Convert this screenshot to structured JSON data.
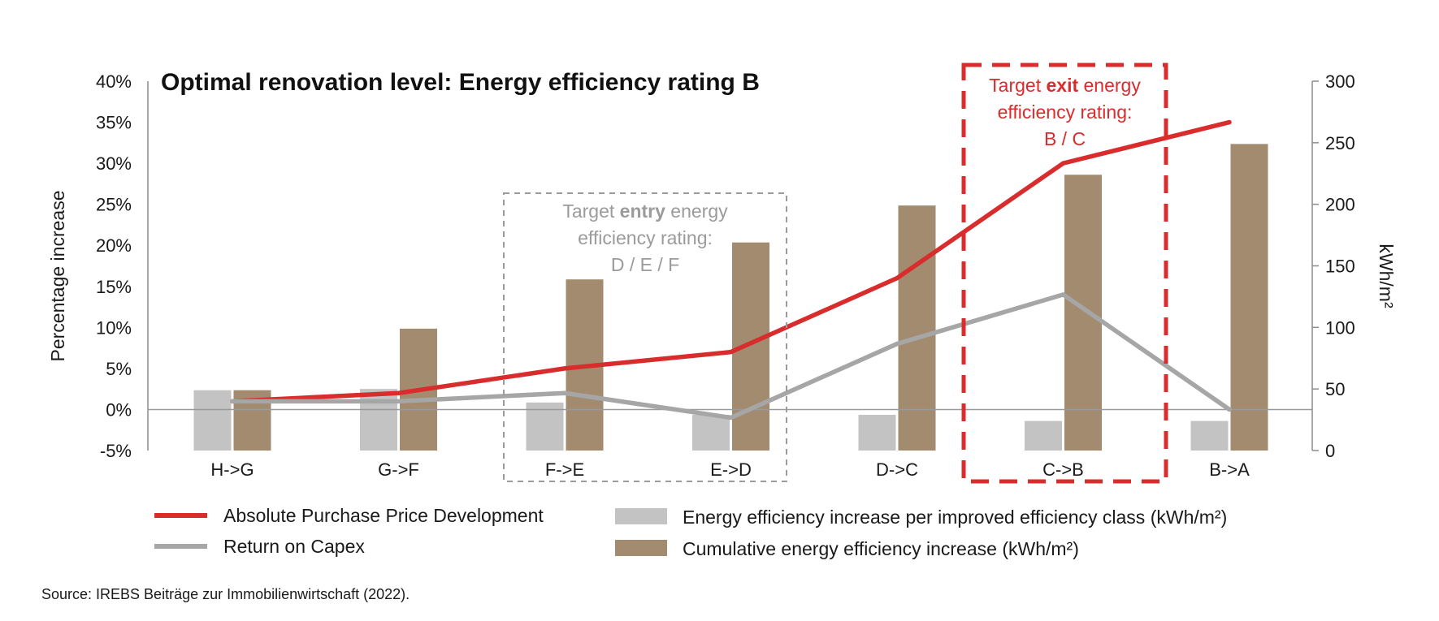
{
  "chart_data": {
    "type": "bar",
    "title": "Optimal renovation level: Energy efficiency rating B",
    "categories": [
      "H->G",
      "G->F",
      "F->E",
      "E->D",
      "D->C",
      "C->B",
      "B->A"
    ],
    "ylabel_left": "Percentage increase",
    "ylabel_right": "kWh/m²",
    "ylim_left": [
      -5,
      40
    ],
    "ylim_right": [
      0,
      300
    ],
    "left_ticks": [
      "40%",
      "35%",
      "30%",
      "25%",
      "20%",
      "15%",
      "10%",
      "5%",
      "0%",
      "-5%"
    ],
    "right_ticks": [
      "300",
      "250",
      "200",
      "150",
      "100",
      "50",
      "0"
    ],
    "grid": false,
    "legend_position": "bottom",
    "series": [
      {
        "name": "Energy efficiency increase per improved efficiency class (kWh/m²)",
        "kind": "bar",
        "axis": "right",
        "color": "#c3c3c3",
        "values": [
          49,
          50,
          39,
          29,
          29,
          24,
          24
        ]
      },
      {
        "name": "Cumulative energy efficiency increase (kWh/m²)",
        "kind": "bar",
        "axis": "right",
        "color": "#a28b6f",
        "values": [
          49,
          99,
          139,
          169,
          199,
          224,
          249
        ]
      },
      {
        "name": "Absolute Purchase Price Development",
        "kind": "line",
        "axis": "left",
        "color": "#d92c2c",
        "values": [
          1,
          2,
          5,
          7,
          16,
          30,
          35
        ]
      },
      {
        "name": "Return on Capex",
        "kind": "line",
        "axis": "left",
        "color": "#a6a6a6",
        "values": [
          1,
          1,
          2,
          -1,
          8,
          14,
          0
        ]
      }
    ],
    "annotations": [
      {
        "id": "entry",
        "style": "dashed-gray",
        "color": "#9b9b9b",
        "categories": [
          "F->E",
          "E->D"
        ],
        "pre": "Target ",
        "bold": "entry",
        "post": " energy",
        "line2": "efficiency rating:",
        "line3": "D / E / F"
      },
      {
        "id": "exit",
        "style": "dashed-red",
        "color": "#d92c2c",
        "categories": [
          "C->B"
        ],
        "pre": "Target ",
        "bold": "exit",
        "post": " energy",
        "line2": "efficiency rating:",
        "line3": "B / C"
      }
    ]
  },
  "source": "Source: IREBS Beiträge zur Immobilienwirtschaft (2022)."
}
